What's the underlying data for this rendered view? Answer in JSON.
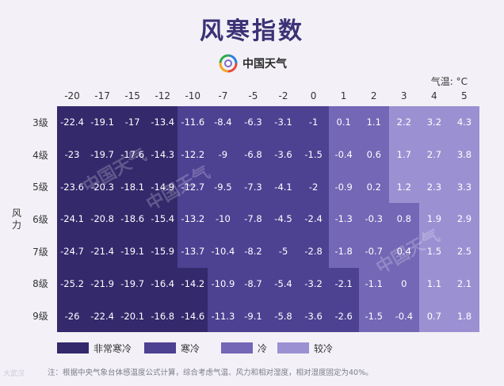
{
  "title": "风寒指数",
  "brand": {
    "name": "中国天气",
    "logo": "rainbow-swirl-logo"
  },
  "unit_label": "气温: °C",
  "y_axis_label": [
    "风",
    "力"
  ],
  "temperatures": [
    "-20",
    "-17",
    "-15",
    "-12",
    "-10",
    "-7",
    "-5",
    "-2",
    "0",
    "1",
    "2",
    "3",
    "4",
    "5"
  ],
  "wind_levels": [
    "3级",
    "4级",
    "5级",
    "6级",
    "7级",
    "8级",
    "9级"
  ],
  "values": [
    [
      "-22.4",
      "-19.1",
      "-17",
      "-13.4",
      "-11.6",
      "-8.4",
      "-6.3",
      "-3.1",
      "-1",
      "0.1",
      "1.1",
      "2.2",
      "3.2",
      "4.3"
    ],
    [
      "-23",
      "-19.7",
      "-17.6",
      "-14.3",
      "-12.2",
      "-9",
      "-6.8",
      "-3.6",
      "-1.5",
      "-0.4",
      "0.6",
      "1.7",
      "2.7",
      "3.8"
    ],
    [
      "-23.6",
      "-20.3",
      "-18.1",
      "-14.9",
      "-12.7",
      "-9.5",
      "-7.3",
      "-4.1",
      "-2",
      "-0.9",
      "0.2",
      "1.2",
      "2.3",
      "3.3"
    ],
    [
      "-24.1",
      "-20.8",
      "-18.6",
      "-15.4",
      "-13.2",
      "-10",
      "-7.8",
      "-4.5",
      "-2.4",
      "-1.3",
      "-0.3",
      "0.8",
      "1.9",
      "2.9"
    ],
    [
      "-24.7",
      "-21.4",
      "-19.1",
      "-15.9",
      "-13.7",
      "-10.4",
      "-8.2",
      "-5",
      "-2.8",
      "-1.8",
      "-0.7",
      "0.4",
      "1.5",
      "2.5"
    ],
    [
      "-25.2",
      "-21.9",
      "-19.7",
      "-16.4",
      "-14.2",
      "-10.9",
      "-8.7",
      "-5.4",
      "-3.2",
      "-2.1",
      "-1.1",
      "0",
      "1.1",
      "2.1"
    ],
    [
      "-26",
      "-22.4",
      "-20.1",
      "-16.8",
      "-14.6",
      "-11.3",
      "-9.1",
      "-5.8",
      "-3.6",
      "-2.6",
      "-1.5",
      "-0.4",
      "0.7",
      "1.8"
    ]
  ],
  "categories": [
    [
      0,
      0,
      0,
      0,
      1,
      1,
      1,
      1,
      1,
      2,
      2,
      3,
      3,
      3
    ],
    [
      0,
      0,
      0,
      0,
      1,
      1,
      1,
      1,
      1,
      2,
      2,
      3,
      3,
      3
    ],
    [
      0,
      0,
      0,
      0,
      1,
      1,
      1,
      1,
      1,
      2,
      2,
      3,
      3,
      3
    ],
    [
      0,
      0,
      0,
      0,
      1,
      1,
      1,
      1,
      1,
      2,
      2,
      2,
      3,
      3
    ],
    [
      0,
      0,
      0,
      0,
      1,
      1,
      1,
      1,
      1,
      2,
      2,
      2,
      3,
      3
    ],
    [
      0,
      0,
      0,
      0,
      0,
      1,
      1,
      1,
      1,
      1,
      2,
      2,
      3,
      3
    ],
    [
      0,
      0,
      0,
      0,
      0,
      1,
      1,
      1,
      1,
      1,
      2,
      2,
      3,
      3
    ]
  ],
  "legend": [
    {
      "label": "非常寒冷",
      "color": "#33296b"
    },
    {
      "label": "寒冷",
      "color": "#4d4192"
    },
    {
      "label": "冷",
      "color": "#7367b6"
    },
    {
      "label": "较冷",
      "color": "#9b91d2"
    }
  ],
  "note": "注：根据中央气象台体感温度公式计算，综合考虑气温、风力和相对湿度，相对湿度固定为40%。",
  "corner_mark": "大武汉",
  "watermark_text": "中国天气"
}
